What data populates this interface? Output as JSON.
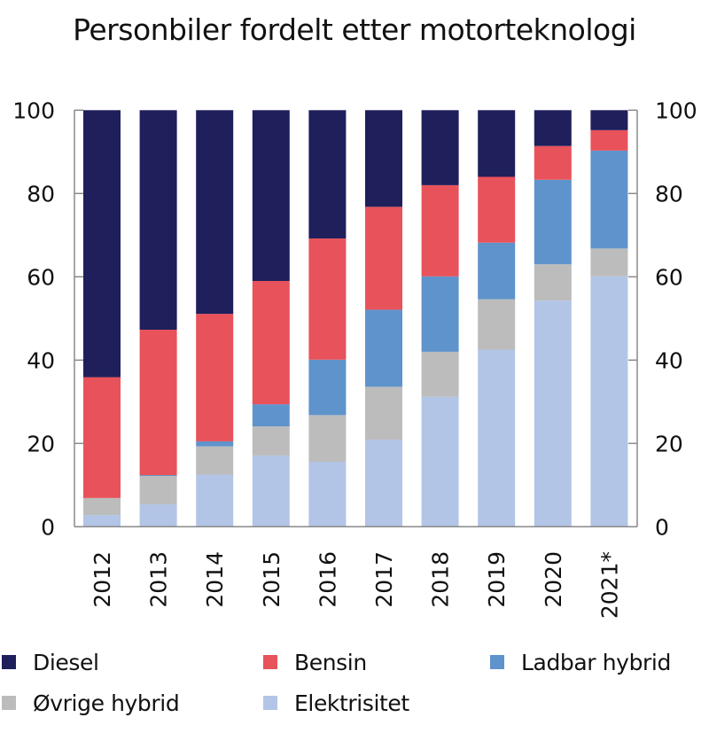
{
  "chart_data": {
    "type": "bar",
    "stacked": true,
    "title": "Personbiler fordelt etter motorteknologi",
    "xlabel": "",
    "ylabel": "",
    "ylim": [
      0,
      100
    ],
    "yticks": [
      "0",
      "20",
      "40",
      "60",
      "80",
      "100"
    ],
    "ytick_values": [
      0,
      20,
      40,
      60,
      80,
      100
    ],
    "secondary_yaxis": true,
    "grid": false,
    "legend_position": "bottom",
    "categories": [
      "2012",
      "2013",
      "2014",
      "2015",
      "2016",
      "2017",
      "2018",
      "2019",
      "2020",
      "2021*"
    ],
    "series": [
      {
        "name": "Elektrisitet",
        "color": "#b2c5e6",
        "values": [
          2.8,
          5.4,
          12.5,
          17.1,
          15.6,
          20.9,
          31.2,
          42.5,
          54.3,
          60.1
        ]
      },
      {
        "name": "Øvrige hybrid",
        "color": "#bcbcbc",
        "values": [
          4.1,
          6.8,
          6.8,
          7.0,
          11.2,
          12.7,
          10.8,
          12.1,
          8.7,
          6.7
        ]
      },
      {
        "name": "Ladbar hybrid",
        "color": "#5f93cb",
        "values": [
          0.0,
          0.2,
          1.2,
          5.3,
          13.3,
          18.5,
          18.1,
          13.6,
          20.3,
          23.5
        ]
      },
      {
        "name": "Bensin",
        "color": "#e8525a",
        "values": [
          29.0,
          34.9,
          30.6,
          29.6,
          29.1,
          24.7,
          21.9,
          15.8,
          8.1,
          4.9
        ]
      },
      {
        "name": "Diesel",
        "color": "#1f1f5c",
        "values": [
          64.1,
          52.7,
          48.9,
          41.0,
          30.8,
          23.2,
          18.0,
          16.0,
          8.6,
          4.8
        ]
      }
    ]
  },
  "legend": {
    "items": [
      {
        "label": "Diesel",
        "color": "#1f1f5c"
      },
      {
        "label": "Bensin",
        "color": "#e8525a"
      },
      {
        "label": "Ladbar hybrid",
        "color": "#5f93cb"
      },
      {
        "label": "Øvrige hybrid",
        "color": "#bcbcbc"
      },
      {
        "label": "Elektrisitet",
        "color": "#b2c5e6"
      }
    ]
  }
}
